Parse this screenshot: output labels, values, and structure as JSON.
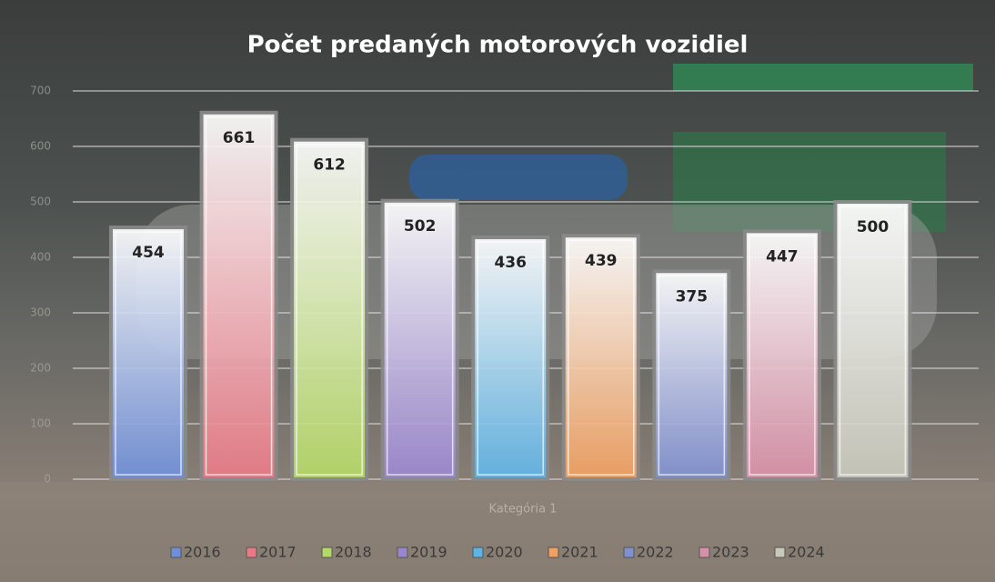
{
  "chart_data": {
    "type": "bar",
    "title": "Počet predaných motorových vozidiel",
    "categories": [
      "Kategória 1"
    ],
    "series": [
      {
        "name": "2016",
        "color": "#6f8fd8",
        "values": [
          454
        ]
      },
      {
        "name": "2017",
        "color": "#e87a86",
        "values": [
          661
        ]
      },
      {
        "name": "2018",
        "color": "#b5d866",
        "values": [
          612
        ]
      },
      {
        "name": "2019",
        "color": "#9a86cf",
        "values": [
          502
        ]
      },
      {
        "name": "2020",
        "color": "#5fb4e6",
        "values": [
          436
        ]
      },
      {
        "name": "2021",
        "color": "#f0a060",
        "values": [
          439
        ]
      },
      {
        "name": "2022",
        "color": "#8090d0",
        "values": [
          375
        ]
      },
      {
        "name": "2023",
        "color": "#d890a8",
        "values": [
          447
        ]
      },
      {
        "name": "2024",
        "color": "#c8c8bc",
        "values": [
          500
        ]
      }
    ],
    "ylim": [
      0,
      700
    ],
    "yticks": [
      0,
      100,
      200,
      300,
      400,
      500,
      600,
      700
    ],
    "grid": true,
    "legend": "bottom"
  }
}
